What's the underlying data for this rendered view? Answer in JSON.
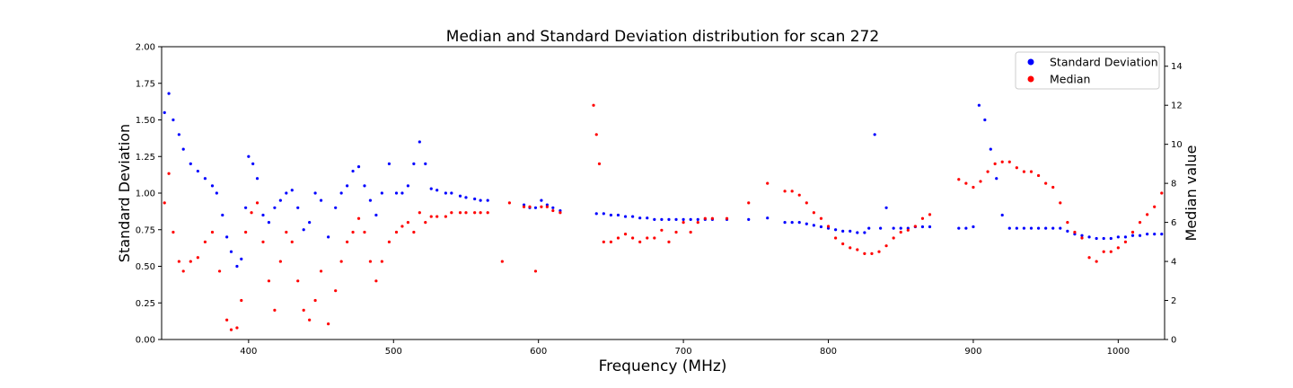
{
  "chart_data": {
    "type": "scatter",
    "title": "Median and Standard Deviation distribution for scan 272",
    "xlabel": "Frequency (MHz)",
    "ylabel_left": "Standard Deviation",
    "ylabel_right": "Median value",
    "xlim": [
      340,
      1032
    ],
    "ylim_left": [
      0,
      2.0
    ],
    "ylim_right": [
      0,
      15
    ],
    "x_ticks": [
      400,
      500,
      600,
      700,
      800,
      900,
      1000
    ],
    "y_left_ticks": [
      "0.00",
      "0.25",
      "0.50",
      "0.75",
      "1.00",
      "1.25",
      "1.50",
      "1.75",
      "2.00"
    ],
    "y_right_ticks": [
      0,
      2,
      4,
      6,
      8,
      10,
      12,
      14
    ],
    "grid": false,
    "legend_position": "top-right",
    "series": [
      {
        "name": "Standard Deviation",
        "color": "#0000ff",
        "axis": "left",
        "marker": "point",
        "x": [
          342,
          345,
          348,
          352,
          355,
          360,
          365,
          370,
          375,
          378,
          382,
          385,
          388,
          392,
          395,
          398,
          400,
          403,
          406,
          410,
          414,
          418,
          422,
          426,
          430,
          434,
          438,
          442,
          446,
          450,
          455,
          460,
          464,
          468,
          472,
          476,
          480,
          484,
          488,
          492,
          497,
          502,
          506,
          510,
          514,
          518,
          522,
          526,
          530,
          536,
          540,
          546,
          550,
          556,
          560,
          565,
          590,
          594,
          598,
          602,
          606,
          610,
          615,
          640,
          645,
          650,
          655,
          660,
          665,
          670,
          675,
          680,
          685,
          690,
          695,
          700,
          705,
          710,
          715,
          720,
          730,
          745,
          758,
          770,
          775,
          780,
          785,
          790,
          795,
          800,
          805,
          810,
          815,
          820,
          825,
          828,
          832,
          836,
          840,
          845,
          850,
          855,
          860,
          865,
          870,
          890,
          895,
          900,
          904,
          908,
          912,
          916,
          920,
          925,
          930,
          935,
          940,
          945,
          950,
          955,
          960,
          965,
          970,
          975,
          980,
          985,
          990,
          995,
          1000,
          1005,
          1010,
          1015,
          1020,
          1025,
          1030
        ],
        "values": [
          1.55,
          1.68,
          1.5,
          1.4,
          1.3,
          1.2,
          1.15,
          1.1,
          1.05,
          1.0,
          0.85,
          0.7,
          0.6,
          0.5,
          0.55,
          0.9,
          1.25,
          1.2,
          1.1,
          0.85,
          0.8,
          0.9,
          0.95,
          1.0,
          1.02,
          0.9,
          0.75,
          0.8,
          1.0,
          0.95,
          0.7,
          0.9,
          1.0,
          1.05,
          1.15,
          1.18,
          1.05,
          0.95,
          0.85,
          1.0,
          1.2,
          1.0,
          1.0,
          1.05,
          1.2,
          1.35,
          1.2,
          1.03,
          1.02,
          1.0,
          1.0,
          0.98,
          0.97,
          0.96,
          0.95,
          0.95,
          0.92,
          0.9,
          0.9,
          0.95,
          0.92,
          0.9,
          0.88,
          0.86,
          0.86,
          0.85,
          0.85,
          0.84,
          0.84,
          0.83,
          0.83,
          0.82,
          0.82,
          0.82,
          0.82,
          0.82,
          0.82,
          0.82,
          0.82,
          0.82,
          0.82,
          0.82,
          0.83,
          0.8,
          0.8,
          0.8,
          0.79,
          0.78,
          0.77,
          0.76,
          0.75,
          0.74,
          0.74,
          0.73,
          0.73,
          0.76,
          1.4,
          0.76,
          0.9,
          0.76,
          0.76,
          0.76,
          0.77,
          0.77,
          0.77,
          0.76,
          0.76,
          0.77,
          1.6,
          1.5,
          1.3,
          1.1,
          0.85,
          0.76,
          0.76,
          0.76,
          0.76,
          0.76,
          0.76,
          0.76,
          0.76,
          0.74,
          0.72,
          0.71,
          0.7,
          0.69,
          0.69,
          0.69,
          0.7,
          0.7,
          0.71,
          0.71,
          0.72,
          0.72,
          0.72
        ]
      },
      {
        "name": "Median",
        "color": "#ff0000",
        "axis": "right",
        "marker": "point",
        "x": [
          342,
          345,
          348,
          352,
          355,
          360,
          365,
          370,
          375,
          380,
          385,
          388,
          392,
          395,
          398,
          402,
          406,
          410,
          414,
          418,
          422,
          426,
          430,
          434,
          438,
          442,
          446,
          450,
          455,
          460,
          464,
          468,
          472,
          476,
          480,
          484,
          488,
          492,
          497,
          502,
          506,
          510,
          514,
          518,
          522,
          526,
          530,
          536,
          540,
          546,
          550,
          556,
          560,
          565,
          575,
          580,
          590,
          594,
          598,
          602,
          606,
          610,
          615,
          638,
          640,
          642,
          645,
          650,
          655,
          660,
          665,
          670,
          675,
          680,
          685,
          690,
          695,
          700,
          705,
          710,
          715,
          720,
          730,
          745,
          758,
          770,
          775,
          780,
          785,
          790,
          795,
          800,
          805,
          810,
          815,
          820,
          825,
          830,
          835,
          840,
          845,
          850,
          855,
          860,
          865,
          870,
          890,
          895,
          900,
          905,
          910,
          915,
          920,
          925,
          930,
          935,
          940,
          945,
          950,
          955,
          960,
          965,
          970,
          975,
          980,
          985,
          990,
          995,
          1000,
          1005,
          1010,
          1015,
          1020,
          1025,
          1030
        ],
        "values": [
          7.0,
          8.5,
          5.5,
          4.0,
          3.5,
          4.0,
          4.2,
          5.0,
          5.5,
          3.5,
          1.0,
          0.5,
          0.6,
          2.0,
          5.5,
          6.5,
          7.0,
          5.0,
          3.0,
          1.5,
          4.0,
          5.5,
          5.0,
          3.0,
          1.5,
          1.0,
          2.0,
          3.5,
          0.8,
          2.5,
          4.0,
          5.0,
          5.5,
          6.2,
          5.5,
          4.0,
          3.0,
          4.0,
          5.0,
          5.5,
          5.8,
          6.0,
          5.5,
          6.5,
          6.0,
          6.3,
          6.3,
          6.3,
          6.5,
          6.5,
          6.5,
          6.5,
          6.5,
          6.5,
          4.0,
          7.0,
          6.8,
          6.8,
          3.5,
          6.8,
          6.8,
          6.6,
          6.5,
          12.0,
          10.5,
          9.0,
          5.0,
          5.0,
          5.2,
          5.4,
          5.2,
          5.0,
          5.2,
          5.2,
          5.6,
          5.0,
          5.5,
          6.0,
          5.5,
          6.0,
          6.2,
          6.2,
          6.2,
          7.0,
          8.0,
          7.6,
          7.6,
          7.4,
          7.0,
          6.5,
          6.2,
          5.8,
          5.2,
          4.9,
          4.7,
          4.6,
          4.4,
          4.4,
          4.5,
          4.8,
          5.2,
          5.5,
          5.6,
          5.8,
          6.2,
          6.4,
          8.2,
          8.0,
          7.8,
          8.1,
          8.6,
          9.0,
          9.1,
          9.1,
          8.8,
          8.6,
          8.6,
          8.4,
          8.0,
          7.8,
          7.0,
          6.0,
          5.5,
          5.2,
          4.2,
          4.0,
          4.5,
          4.5,
          4.7,
          5.0,
          5.5,
          6.0,
          6.4,
          6.8,
          7.5
        ]
      }
    ]
  }
}
